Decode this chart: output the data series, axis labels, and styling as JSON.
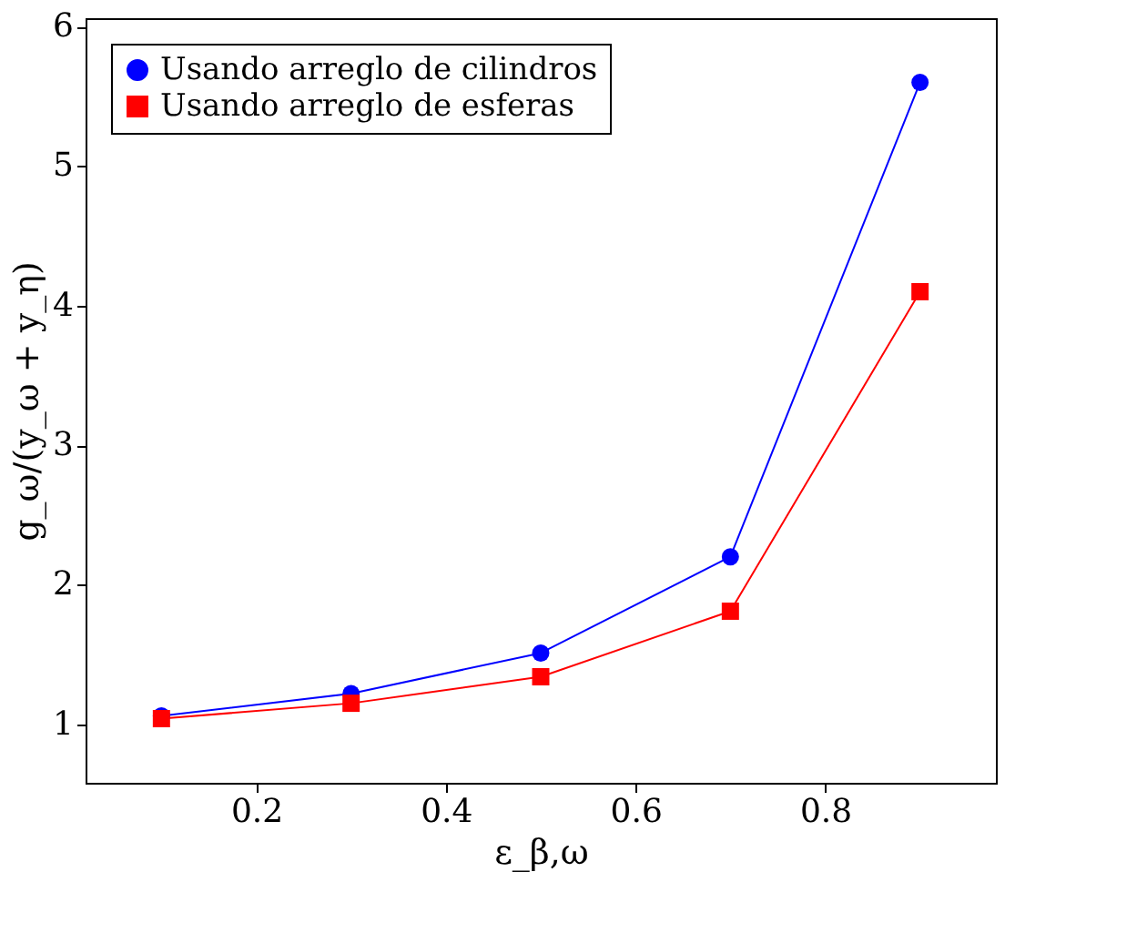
{
  "chart_data": {
    "type": "line",
    "xlabel": "ε_β,ω",
    "ylabel": "g_ω/(y_ω + y_η)",
    "x": [
      0.1,
      0.3,
      0.5,
      0.7,
      0.9
    ],
    "series": [
      {
        "name": "Usando arreglo de cilindros",
        "color": "#0000ff",
        "marker": "circle",
        "values": [
          1.06,
          1.22,
          1.51,
          2.2,
          5.6
        ]
      },
      {
        "name": "Usando arreglo de esferas",
        "color": "#ff0000",
        "marker": "square",
        "values": [
          1.04,
          1.15,
          1.34,
          1.81,
          4.1
        ]
      }
    ],
    "xlim": [
      0.02,
      0.98
    ],
    "xticks": [
      0.2,
      0.4,
      0.6,
      0.8
    ],
    "ylim": [
      0.58,
      6.06
    ],
    "yticks": [
      1,
      2,
      3,
      4,
      5,
      6
    ],
    "grid": false,
    "legend": "top left",
    "line_style": "solid"
  }
}
